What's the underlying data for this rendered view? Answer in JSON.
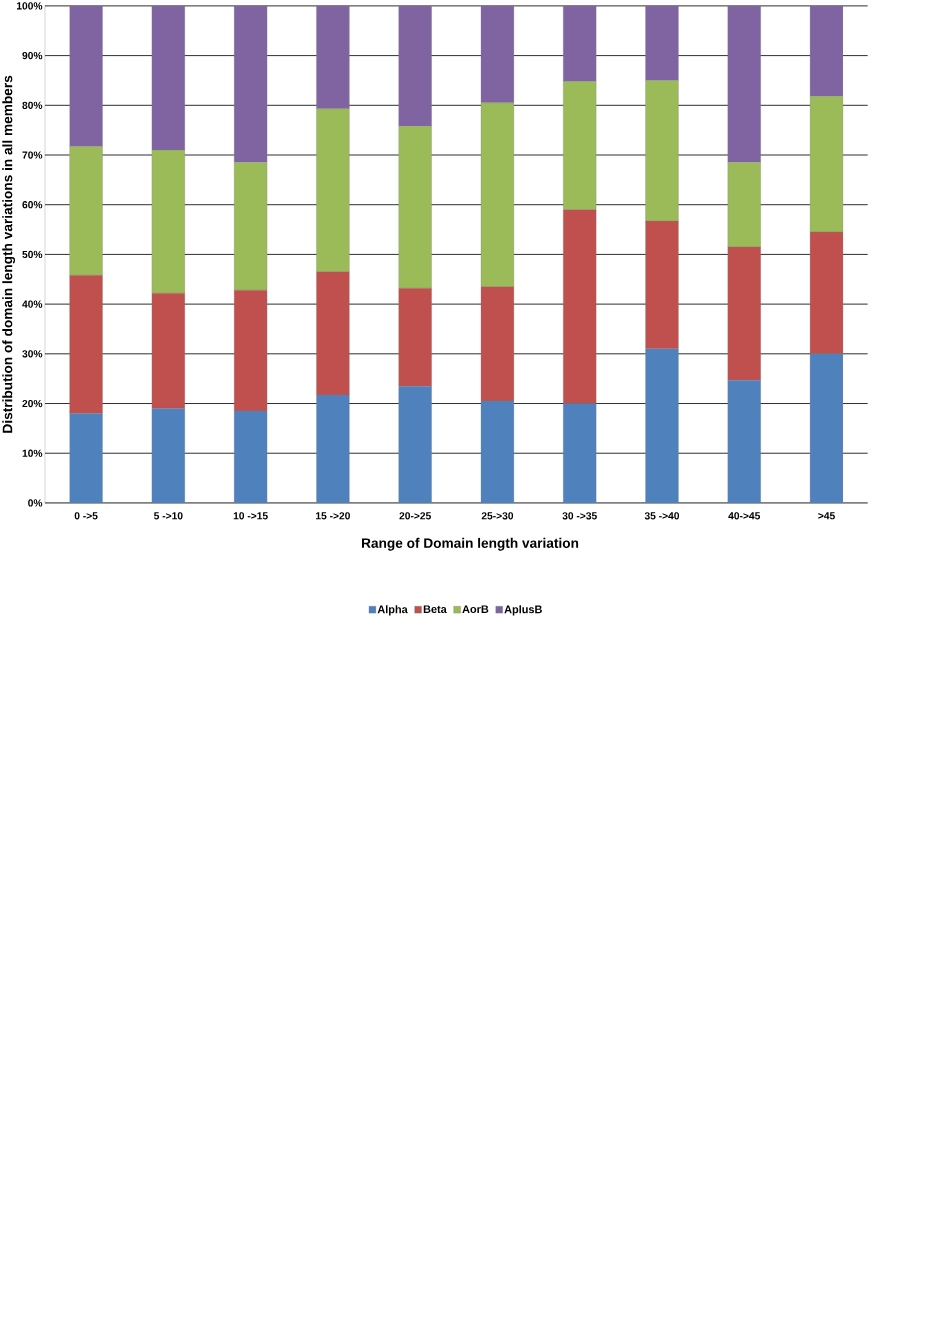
{
  "chart_data": {
    "type": "bar",
    "stacked": true,
    "xlabel": "Range of Domain length variation",
    "ylabel": "Distribution of domain length variations in all members",
    "categories": [
      "0 ->5",
      "5 ->10",
      "10 ->15",
      "15 ->20",
      "20->25",
      "25->30",
      "30 ->35",
      "35 ->40",
      "40->45",
      ">45"
    ],
    "series": [
      {
        "name": "Alpha",
        "color": "#4f81bd",
        "values": [
          18.0,
          19.0,
          18.5,
          21.7,
          23.5,
          20.5,
          20.0,
          31.0,
          24.7,
          30.0
        ]
      },
      {
        "name": "Beta",
        "color": "#c0504d",
        "values": [
          27.8,
          23.2,
          24.3,
          24.8,
          19.7,
          23.0,
          39.0,
          25.7,
          26.8,
          24.5
        ]
      },
      {
        "name": "AorB",
        "color": "#9bbb59",
        "values": [
          25.9,
          28.8,
          25.7,
          32.8,
          32.6,
          37.0,
          25.8,
          28.3,
          17.0,
          27.3
        ]
      },
      {
        "name": "AplusB",
        "color": "#8064a2",
        "values": [
          28.3,
          29.0,
          31.5,
          20.7,
          24.2,
          19.5,
          15.2,
          15.0,
          31.5,
          18.2
        ]
      }
    ],
    "ylim": [
      0,
      100
    ],
    "yticks": [
      {
        "value": 0,
        "label": "0%"
      },
      {
        "value": 10,
        "label": "10%"
      },
      {
        "value": 20,
        "label": "20%"
      },
      {
        "value": 30,
        "label": "30%"
      },
      {
        "value": 40,
        "label": "40%"
      },
      {
        "value": 50,
        "label": "50%"
      },
      {
        "value": 60,
        "label": "60%"
      },
      {
        "value": 70,
        "label": "70%"
      },
      {
        "value": 80,
        "label": "80%"
      },
      {
        "value": 90,
        "label": "90%"
      },
      {
        "value": 100,
        "label": "100%"
      }
    ],
    "grid": "y",
    "legend": "bottom"
  }
}
